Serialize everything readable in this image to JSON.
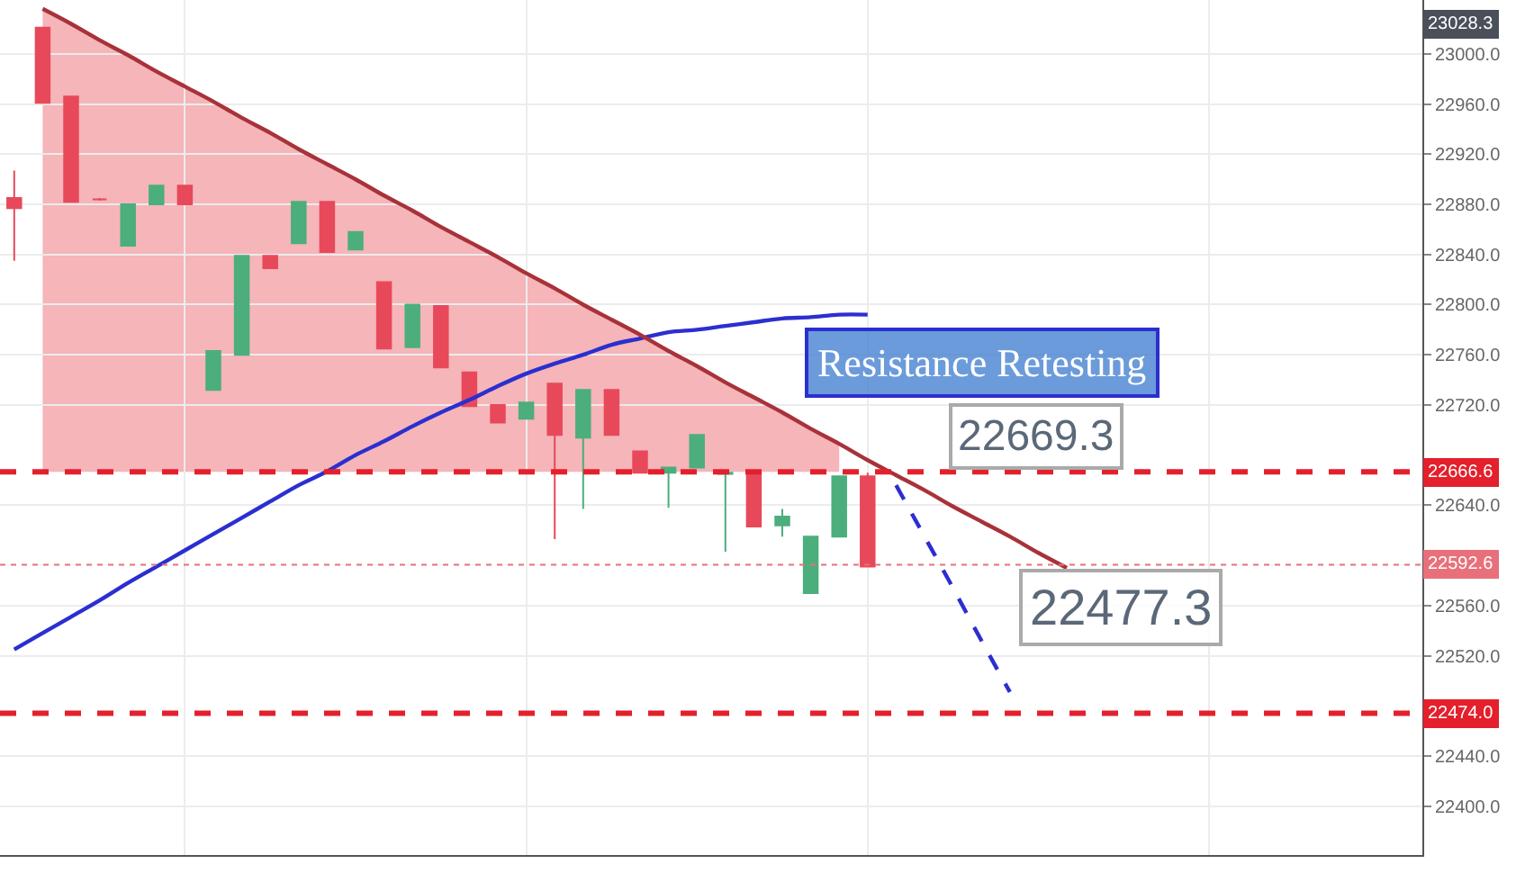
{
  "chart_data": {
    "type": "candlestick",
    "annotations": [
      "Resistance Retesting",
      "22669.3",
      "22477.3",
      "23028.3"
    ],
    "categories": [
      null,
      null,
      null,
      null,
      null,
      null,
      null,
      null,
      null,
      null,
      null,
      null,
      null,
      null,
      null,
      null,
      null,
      null,
      null,
      null,
      null,
      null,
      null,
      null,
      null,
      null,
      null,
      null,
      null,
      null,
      null,
      null,
      null,
      null,
      null,
      null,
      null,
      null,
      null,
      null,
      null,
      null,
      null,
      null,
      null,
      null,
      null,
      null,
      null,
      null
    ],
    "ohlc": [
      [
        22885,
        22907,
        22835,
        22877
      ],
      [
        23021,
        23021,
        22961,
        22961
      ],
      [
        22966,
        22966,
        22882,
        22882
      ],
      [
        22884,
        22885,
        22883,
        22884
      ],
      [
        22847,
        22880,
        22847,
        22880
      ],
      [
        22880,
        22895,
        22880,
        22895
      ],
      [
        22895,
        22895,
        22880,
        22880
      ],
      [
        22732,
        22763,
        22732,
        22763
      ],
      [
        22760,
        22839,
        22760,
        22839
      ],
      [
        22839,
        22839,
        22829,
        22829
      ],
      [
        22849,
        22882,
        22849,
        22882
      ],
      [
        22882,
        22882,
        22842,
        22842
      ],
      [
        22844,
        22858,
        22844,
        22858
      ],
      [
        22818,
        22818,
        22765,
        22765
      ],
      [
        22766,
        22800,
        22766,
        22800
      ],
      [
        22799,
        22799,
        22750,
        22750
      ],
      [
        22746,
        22746,
        22719,
        22719
      ],
      [
        22720,
        22720,
        22706,
        22706
      ],
      [
        22709,
        22722,
        22709,
        22722
      ],
      [
        22737,
        22737,
        22613,
        22696
      ],
      [
        22694,
        22732,
        22637,
        22732
      ],
      [
        22732,
        22732,
        22696,
        22696
      ],
      [
        22683,
        22683,
        22666,
        22666
      ],
      [
        22666,
        22670,
        22638,
        22670
      ],
      [
        22670,
        22696,
        22670,
        22696
      ],
      [
        22666,
        22667,
        22603,
        22665
      ],
      [
        22666,
        22666,
        22623,
        22623
      ],
      [
        22624,
        22637,
        22615,
        22631
      ],
      [
        22570,
        22615,
        22570,
        22615
      ],
      [
        22615,
        22663,
        22615,
        22663
      ],
      [
        22663,
        22666,
        22591,
        22591
      ],
      null,
      null,
      null,
      null,
      null,
      null,
      null,
      null,
      null,
      null,
      null,
      null,
      null,
      null,
      null,
      null,
      null,
      null,
      null
    ],
    "colors": [
      "#e8495a",
      "#e8495a",
      "#e8495a",
      "#e8495a",
      "#4cae7c",
      "#4cae7c",
      "#e8495a",
      "#4cae7c",
      "#4cae7c",
      "#e8495a",
      "#4cae7c",
      "#e8495a",
      "#4cae7c",
      "#e8495a",
      "#4cae7c",
      "#e8495a",
      "#e8495a",
      "#e8495a",
      "#4cae7c",
      "#e8495a",
      "#4cae7c",
      "#e8495a",
      "#e8495a",
      "#4cae7c",
      "#4cae7c",
      "#4cae7c",
      "#e8495a",
      "#4cae7c",
      "#4cae7c",
      "#4cae7c",
      "#e8495a",
      null,
      null,
      null,
      null,
      null,
      null,
      null,
      null,
      null,
      null,
      null,
      null,
      null,
      null,
      null,
      null,
      null,
      null,
      null
    ],
    "series": [
      {
        "type": "line",
        "color": "#2b2fd0",
        "values": [
          22525,
          22538,
          22551,
          22564,
          22578,
          22591,
          22604,
          22617,
          22630,
          22643,
          22656,
          22667,
          22680,
          22691,
          22703,
          22714,
          22724,
          22735,
          22745,
          22753,
          22760,
          22768,
          22773,
          22778,
          22780,
          22783,
          22786,
          22789,
          22790,
          22792,
          22792,
          null,
          null,
          null,
          null,
          null,
          null,
          null,
          null,
          null,
          null,
          null,
          null,
          null,
          null,
          null,
          null,
          null,
          null,
          null
        ]
      },
      {
        "type": "line",
        "color": "#a8323a",
        "values": [
          null,
          23036,
          23024,
          23011,
          22999,
          22986,
          22974,
          22962,
          22949,
          22937,
          22924,
          22912,
          22900,
          22887,
          22875,
          22862,
          22850,
          22838,
          22825,
          22813,
          22800,
          22788,
          22776,
          22763,
          22751,
          22738,
          22726,
          22714,
          22701,
          22689,
          22676,
          22664,
          22652,
          22639,
          22627,
          22615,
          22602,
          22590,
          null,
          null,
          null,
          null,
          null,
          null,
          null,
          null,
          null,
          null,
          null,
          null
        ],
        "lower": [
          null,
          22666.6,
          22666.6,
          22666.6,
          22666.6,
          22666.6,
          22666.6,
          22666.6,
          22666.6,
          22666.6,
          22666.6,
          22666.6,
          22666.6,
          22666.6,
          22666.6,
          22666.6,
          22666.6,
          22666.6,
          22666.6,
          22666.6,
          22666.6,
          22666.6,
          22666.6,
          22666.6,
          22666.6,
          22666.6,
          22666.6,
          22666.6,
          22666.6,
          22666.6,
          null,
          null,
          null,
          null,
          null,
          null,
          null,
          null,
          null,
          null,
          null,
          null,
          null,
          null,
          null,
          null,
          null,
          null,
          null,
          null
        ],
        "upper": [
          null,
          23036,
          23024,
          23011,
          22999,
          22986,
          22974,
          22962,
          22949,
          22937,
          22924,
          22912,
          22900,
          22887,
          22875,
          22862,
          22850,
          22838,
          22825,
          22813,
          22800,
          22788,
          22776,
          22763,
          22751,
          22738,
          22726,
          22714,
          22701,
          22689,
          null,
          null,
          null,
          null,
          null,
          null,
          null,
          null,
          null,
          null,
          null,
          null,
          null,
          null,
          null,
          null,
          null,
          null,
          null,
          null
        ]
      },
      {
        "type": "line",
        "color": "#2b2fd0",
        "line_style": "dashed",
        "values": [
          null,
          null,
          null,
          null,
          null,
          null,
          null,
          null,
          null,
          null,
          null,
          null,
          null,
          null,
          null,
          null,
          null,
          null,
          null,
          null,
          null,
          null,
          null,
          null,
          null,
          null,
          null,
          null,
          null,
          null,
          null,
          22656,
          22615,
          22574,
          22532,
          22491,
          null,
          null,
          null,
          null,
          null,
          null,
          null,
          null,
          null,
          null,
          null,
          null,
          null,
          null
        ]
      }
    ],
    "ref_lines": [
      {
        "axis": "y",
        "value": 22666.6,
        "label": "22666.6",
        "color": "#e3202c",
        "line_style": "dashed"
      },
      {
        "axis": "y",
        "value": 22592.6,
        "label": "22592.6",
        "color": "#e8707a",
        "line_style": "dotted"
      },
      {
        "axis": "y",
        "value": 22474.0,
        "label": "22474.0",
        "color": "#e3202c",
        "line_style": "dashed"
      }
    ],
    "ylim": [
      22361,
      23043
    ],
    "yticks": [
      {
        "value": 22400,
        "label": "22400.0"
      },
      {
        "value": 22440,
        "label": "22440.0"
      },
      {
        "value": 22520,
        "label": "22520.0"
      },
      {
        "value": 22560,
        "label": "22560.0"
      },
      {
        "value": 22640,
        "label": "22640.0"
      },
      {
        "value": 22720,
        "label": "22720.0"
      },
      {
        "value": 22760,
        "label": "22760.0"
      },
      {
        "value": 22800,
        "label": "22800.0"
      },
      {
        "value": 22840,
        "label": "22840.0"
      },
      {
        "value": 22880,
        "label": "22880.0"
      },
      {
        "value": 22920,
        "label": "22920.0"
      },
      {
        "value": 22960,
        "label": "22960.0"
      },
      {
        "value": 23000,
        "label": "23000.0"
      }
    ],
    "grid": true,
    "tick_labels": "y"
  }
}
